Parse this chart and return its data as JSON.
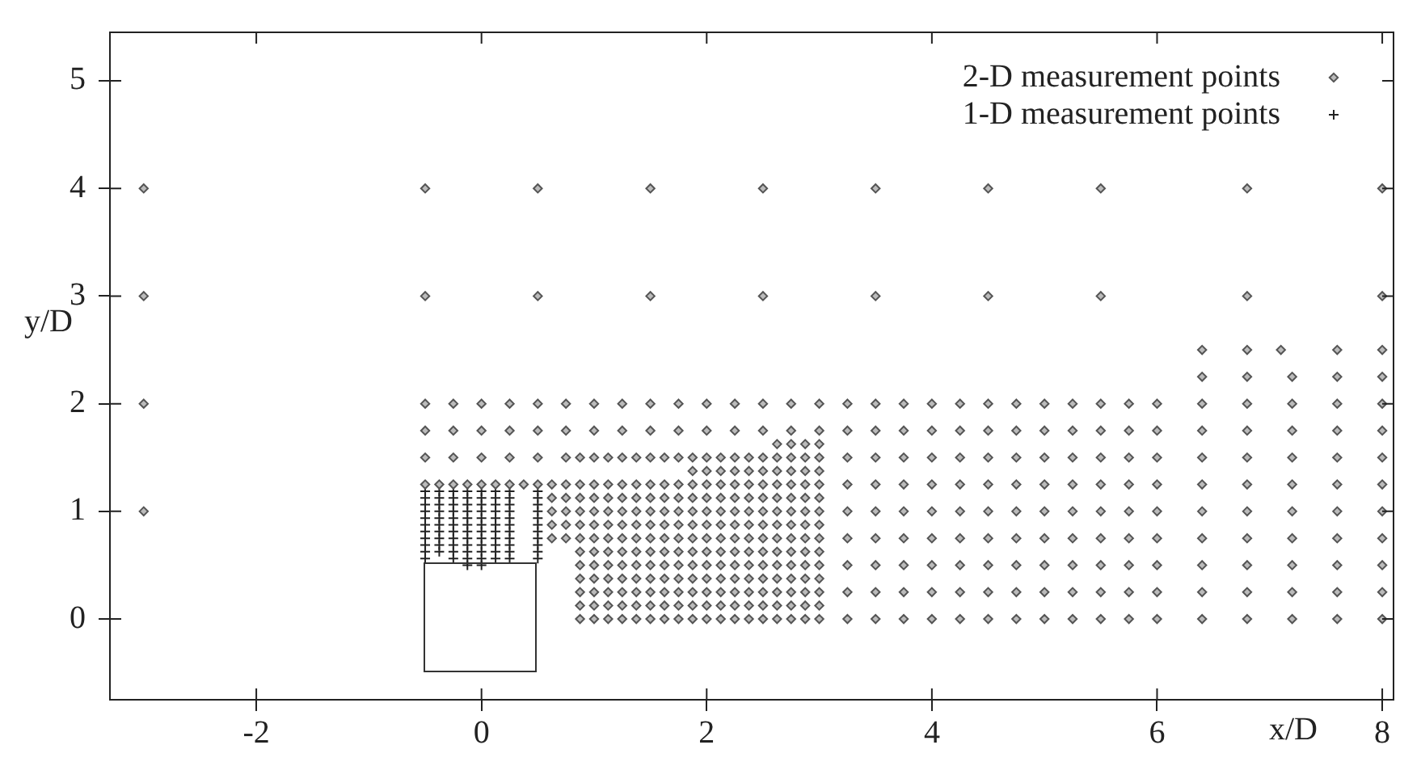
{
  "chart_data": {
    "type": "scatter",
    "xlabel": "x/D",
    "ylabel": "y/D",
    "xlim": [
      -3.3,
      8.1
    ],
    "ylim": [
      -0.75,
      5.45
    ],
    "xticks": [
      -2,
      0,
      2,
      4,
      6,
      8
    ],
    "yticks": [
      0,
      1,
      2,
      3,
      4,
      5
    ],
    "grid": false,
    "legend": "top right",
    "series": [
      {
        "name": "2-D measurement points",
        "color": "#555555",
        "marker": "diamond",
        "x": [
          -3,
          -0.5,
          0.5,
          1.5,
          2.5,
          3.5,
          4.5,
          5.5,
          6.8,
          8,
          -3,
          -0.5,
          0.5,
          1.5,
          2.5,
          3.5,
          4.5,
          5.5,
          6.8,
          8,
          6.4,
          6.8,
          7.1,
          7.6,
          8,
          6.4,
          6.8,
          7.2,
          7.6,
          8,
          -3,
          -0.5,
          -0.25,
          0,
          0.25,
          0.5,
          0.75,
          1,
          1.25,
          1.5,
          1.75,
          2,
          2.25,
          2.5,
          2.75,
          3,
          3.25,
          3.5,
          3.75,
          4,
          4.25,
          4.5,
          4.75,
          5,
          5.25,
          5.5,
          5.75,
          6,
          6.4,
          6.8,
          7.2,
          7.6,
          8,
          -0.5,
          -0.25,
          0,
          0.25,
          0.5,
          0.75,
          1,
          1.25,
          1.5,
          1.75,
          2,
          2.25,
          2.5,
          2.75,
          3,
          3.25,
          3.5,
          3.75,
          4,
          4.25,
          4.5,
          4.75,
          5,
          5.25,
          5.5,
          5.75,
          6,
          6.4,
          6.8,
          7.2,
          7.6,
          8,
          2.625,
          2.75,
          2.875,
          3,
          -0.5,
          -0.25,
          0,
          0.25,
          0.5,
          0.75,
          0.875,
          1,
          1.125,
          1.25,
          1.375,
          1.5,
          1.625,
          1.75,
          1.875,
          2,
          2.125,
          2.25,
          2.375,
          2.5,
          2.625,
          2.75,
          2.875,
          3,
          3.25,
          3.5,
          3.75,
          4,
          4.25,
          4.5,
          4.75,
          5,
          5.25,
          5.5,
          5.75,
          6,
          6.4,
          6.8,
          7.2,
          7.6,
          8,
          1.875,
          2,
          2.125,
          2.25,
          2.375,
          2.5,
          2.625,
          2.75,
          2.875,
          3,
          -0.5,
          -0.375,
          -0.25,
          -0.125,
          0,
          0.125,
          0.25,
          0.375,
          0.5,
          0.625,
          0.75,
          0.875,
          1,
          1.125,
          1.25,
          1.375,
          1.5,
          1.625,
          1.75,
          1.875,
          2,
          2.125,
          2.25,
          2.375,
          2.5,
          2.625,
          2.75,
          2.875,
          3,
          3.25,
          3.5,
          3.75,
          4,
          4.25,
          4.5,
          4.75,
          5,
          5.25,
          5.5,
          5.75,
          6,
          6.4,
          6.8,
          7.2,
          7.6,
          8,
          0.625,
          0.75,
          0.875,
          1,
          1.125,
          1.25,
          1.375,
          1.5,
          1.625,
          1.75,
          1.875,
          2,
          2.125,
          2.25,
          2.375,
          2.5,
          2.625,
          2.75,
          2.875,
          3,
          -3,
          0.625,
          0.75,
          0.875,
          1,
          1.125,
          1.25,
          1.375,
          1.5,
          1.625,
          1.75,
          1.875,
          2,
          2.125,
          2.25,
          2.375,
          2.5,
          2.625,
          2.75,
          2.875,
          3,
          3.25,
          3.5,
          3.75,
          4,
          4.25,
          4.5,
          4.75,
          5,
          5.25,
          5.5,
          5.75,
          6,
          6.4,
          6.8,
          7.2,
          7.6,
          8,
          0.625,
          0.75,
          0.875,
          1,
          1.125,
          1.25,
          1.375,
          1.5,
          1.625,
          1.75,
          1.875,
          2,
          2.125,
          2.25,
          2.375,
          2.5,
          2.625,
          2.75,
          2.875,
          3,
          0.625,
          0.75,
          0.875,
          1,
          1.125,
          1.25,
          1.375,
          1.5,
          1.625,
          1.75,
          1.875,
          2,
          2.125,
          2.25,
          2.375,
          2.5,
          2.625,
          2.75,
          2.875,
          3,
          3.25,
          3.5,
          3.75,
          4,
          4.25,
          4.5,
          4.75,
          5,
          5.25,
          5.5,
          5.75,
          6,
          6.4,
          6.8,
          7.2,
          7.6,
          8,
          0.875,
          1,
          1.125,
          1.25,
          1.375,
          1.5,
          1.625,
          1.75,
          1.875,
          2,
          2.125,
          2.25,
          2.375,
          2.5,
          2.625,
          2.75,
          2.875,
          3,
          0.875,
          1,
          1.125,
          1.25,
          1.375,
          1.5,
          1.625,
          1.75,
          1.875,
          2,
          2.125,
          2.25,
          2.375,
          2.5,
          2.625,
          2.75,
          2.875,
          3,
          3.25,
          3.5,
          3.75,
          4,
          4.25,
          4.5,
          4.75,
          5,
          5.25,
          5.5,
          5.75,
          6,
          6.4,
          6.8,
          7.2,
          7.6,
          8,
          0.875,
          1,
          1.125,
          1.25,
          1.375,
          1.5,
          1.625,
          1.75,
          1.875,
          2,
          2.125,
          2.25,
          2.375,
          2.5,
          2.625,
          2.75,
          2.875,
          3,
          0.875,
          1,
          1.125,
          1.25,
          1.375,
          1.5,
          1.625,
          1.75,
          1.875,
          2,
          2.125,
          2.25,
          2.375,
          2.5,
          2.625,
          2.75,
          2.875,
          3,
          3.25,
          3.5,
          3.75,
          4,
          4.25,
          4.5,
          4.75,
          5,
          5.25,
          5.5,
          5.75,
          6,
          6.4,
          6.8,
          7.2,
          7.6,
          8,
          0.875,
          1,
          1.125,
          1.25,
          1.375,
          1.5,
          1.625,
          1.75,
          1.875,
          2,
          2.125,
          2.25,
          2.375,
          2.5,
          2.625,
          2.75,
          2.875,
          3,
          0.875,
          1,
          1.125,
          1.25,
          1.375,
          1.5,
          1.625,
          1.75,
          1.875,
          2,
          2.125,
          2.25,
          2.375,
          2.5,
          2.625,
          2.75,
          2.875,
          3,
          3.25,
          3.5,
          3.75,
          4,
          4.25,
          4.5,
          4.75,
          5,
          5.25,
          5.5,
          5.75,
          6,
          6.4,
          6.8,
          7.2,
          7.6,
          8
        ],
        "values": [
          4,
          4,
          4,
          4,
          4,
          4,
          4,
          4,
          4,
          4,
          3,
          3,
          3,
          3,
          3,
          3,
          3,
          3,
          3,
          3,
          2.5,
          2.5,
          2.5,
          2.5,
          2.5,
          2.25,
          2.25,
          2.25,
          2.25,
          2.25,
          2,
          2,
          2,
          2,
          2,
          2,
          2,
          2,
          2,
          2,
          2,
          2,
          2,
          2,
          2,
          2,
          2,
          2,
          2,
          2,
          2,
          2,
          2,
          2,
          2,
          2,
          2,
          2,
          2,
          2,
          2,
          2,
          2,
          1.75,
          1.75,
          1.75,
          1.75,
          1.75,
          1.75,
          1.75,
          1.75,
          1.75,
          1.75,
          1.75,
          1.75,
          1.75,
          1.75,
          1.75,
          1.75,
          1.75,
          1.75,
          1.75,
          1.75,
          1.75,
          1.75,
          1.75,
          1.75,
          1.75,
          1.75,
          1.75,
          1.75,
          1.75,
          1.75,
          1.75,
          1.75,
          1.625,
          1.625,
          1.625,
          1.625,
          1.5,
          1.5,
          1.5,
          1.5,
          1.5,
          1.5,
          1.5,
          1.5,
          1.5,
          1.5,
          1.5,
          1.5,
          1.5,
          1.5,
          1.5,
          1.5,
          1.5,
          1.5,
          1.5,
          1.5,
          1.5,
          1.5,
          1.5,
          1.5,
          1.5,
          1.5,
          1.5,
          1.5,
          1.5,
          1.5,
          1.5,
          1.5,
          1.5,
          1.5,
          1.5,
          1.5,
          1.5,
          1.5,
          1.5,
          1.5,
          1.5,
          1.375,
          1.375,
          1.375,
          1.375,
          1.375,
          1.375,
          1.375,
          1.375,
          1.375,
          1.375,
          1.25,
          1.25,
          1.25,
          1.25,
          1.25,
          1.25,
          1.25,
          1.25,
          1.25,
          1.25,
          1.25,
          1.25,
          1.25,
          1.25,
          1.25,
          1.25,
          1.25,
          1.25,
          1.25,
          1.25,
          1.25,
          1.25,
          1.25,
          1.25,
          1.25,
          1.25,
          1.25,
          1.25,
          1.25,
          1.25,
          1.25,
          1.25,
          1.25,
          1.25,
          1.25,
          1.25,
          1.25,
          1.25,
          1.25,
          1.25,
          1.25,
          1.25,
          1.25,
          1.25,
          1.25,
          1.25,
          1.125,
          1.125,
          1.125,
          1.125,
          1.125,
          1.125,
          1.125,
          1.125,
          1.125,
          1.125,
          1.125,
          1.125,
          1.125,
          1.125,
          1.125,
          1.125,
          1.125,
          1.125,
          1.125,
          1.125,
          1,
          1,
          1,
          1,
          1,
          1,
          1,
          1,
          1,
          1,
          1,
          1,
          1,
          1,
          1,
          1,
          1,
          1,
          1,
          1,
          1,
          1,
          1,
          1,
          1,
          1,
          1,
          1,
          1,
          1,
          1,
          1,
          1,
          1,
          1,
          1,
          1,
          1,
          0.875,
          0.875,
          0.875,
          0.875,
          0.875,
          0.875,
          0.875,
          0.875,
          0.875,
          0.875,
          0.875,
          0.875,
          0.875,
          0.875,
          0.875,
          0.875,
          0.875,
          0.875,
          0.875,
          0.875,
          0.75,
          0.75,
          0.75,
          0.75,
          0.75,
          0.75,
          0.75,
          0.75,
          0.75,
          0.75,
          0.75,
          0.75,
          0.75,
          0.75,
          0.75,
          0.75,
          0.75,
          0.75,
          0.75,
          0.75,
          0.75,
          0.75,
          0.75,
          0.75,
          0.75,
          0.75,
          0.75,
          0.75,
          0.75,
          0.75,
          0.75,
          0.75,
          0.75,
          0.75,
          0.75,
          0.75,
          0.75,
          0.625,
          0.625,
          0.625,
          0.625,
          0.625,
          0.625,
          0.625,
          0.625,
          0.625,
          0.625,
          0.625,
          0.625,
          0.625,
          0.625,
          0.625,
          0.625,
          0.625,
          0.625,
          0.5,
          0.5,
          0.5,
          0.5,
          0.5,
          0.5,
          0.5,
          0.5,
          0.5,
          0.5,
          0.5,
          0.5,
          0.5,
          0.5,
          0.5,
          0.5,
          0.5,
          0.5,
          0.5,
          0.5,
          0.5,
          0.5,
          0.5,
          0.5,
          0.5,
          0.5,
          0.5,
          0.5,
          0.5,
          0.5,
          0.5,
          0.5,
          0.5,
          0.5,
          0.5,
          0.375,
          0.375,
          0.375,
          0.375,
          0.375,
          0.375,
          0.375,
          0.375,
          0.375,
          0.375,
          0.375,
          0.375,
          0.375,
          0.375,
          0.375,
          0.375,
          0.375,
          0.375,
          0.25,
          0.25,
          0.25,
          0.25,
          0.25,
          0.25,
          0.25,
          0.25,
          0.25,
          0.25,
          0.25,
          0.25,
          0.25,
          0.25,
          0.25,
          0.25,
          0.25,
          0.25,
          0.25,
          0.25,
          0.25,
          0.25,
          0.25,
          0.25,
          0.25,
          0.25,
          0.25,
          0.25,
          0.25,
          0.25,
          0.25,
          0.25,
          0.25,
          0.25,
          0.25,
          0.125,
          0.125,
          0.125,
          0.125,
          0.125,
          0.125,
          0.125,
          0.125,
          0.125,
          0.125,
          0.125,
          0.125,
          0.125,
          0.125,
          0.125,
          0.125,
          0.125,
          0.125,
          0,
          0,
          0,
          0,
          0,
          0,
          0,
          0,
          0,
          0,
          0,
          0,
          0,
          0,
          0,
          0,
          0,
          0,
          0,
          0,
          0,
          0,
          0,
          0,
          0,
          0,
          0,
          0,
          0,
          0,
          0,
          0,
          0,
          0,
          0
        ]
      },
      {
        "name": "1-D measurement points",
        "color": "#222222",
        "marker": "cross",
        "x": [
          -0.5,
          -0.375,
          -0.25,
          -0.125,
          0,
          0.125,
          0.25,
          0.5,
          -0.5,
          -0.375,
          -0.25,
          -0.125,
          0,
          0.125,
          0.25,
          0.5,
          -0.5,
          -0.375,
          -0.25,
          -0.125,
          0,
          0.125,
          0.25,
          0.5,
          -0.5,
          -0.375,
          -0.25,
          -0.125,
          0,
          0.125,
          0.25,
          0.5,
          -0.5,
          -0.375,
          -0.25,
          -0.125,
          0,
          0.125,
          0.25,
          0.5,
          -0.5,
          -0.375,
          -0.25,
          -0.125,
          0,
          0.125,
          0.25,
          0.5,
          -0.5,
          -0.375,
          -0.25,
          -0.125,
          0,
          0.125,
          0.25,
          0.5,
          -0.5,
          -0.375,
          -0.25,
          -0.125,
          0,
          0.125,
          0.25,
          0.5,
          -0.5,
          -0.375,
          -0.25,
          -0.125,
          0,
          0.125,
          0.25,
          0.5,
          -0.5,
          -0.375,
          -0.25,
          -0.125,
          0,
          0.125,
          0.25,
          0.5,
          -0.5,
          -0.25,
          -0.125,
          0,
          0.125,
          0.25,
          0.5,
          -0.125,
          0
        ],
        "values": [
          1.1875,
          1.1875,
          1.1875,
          1.1875,
          1.1875,
          1.1875,
          1.1875,
          1.1875,
          1.125,
          1.125,
          1.125,
          1.125,
          1.125,
          1.125,
          1.125,
          1.125,
          1.0625,
          1.0625,
          1.0625,
          1.0625,
          1.0625,
          1.0625,
          1.0625,
          1.0625,
          1,
          1,
          1,
          1,
          1,
          1,
          1,
          1,
          0.9375,
          0.9375,
          0.9375,
          0.9375,
          0.9375,
          0.9375,
          0.9375,
          0.9375,
          0.875,
          0.875,
          0.875,
          0.875,
          0.875,
          0.875,
          0.875,
          0.875,
          0.8125,
          0.8125,
          0.8125,
          0.8125,
          0.8125,
          0.8125,
          0.8125,
          0.8125,
          0.75,
          0.75,
          0.75,
          0.75,
          0.75,
          0.75,
          0.75,
          0.75,
          0.6875,
          0.6875,
          0.6875,
          0.6875,
          0.6875,
          0.6875,
          0.6875,
          0.6875,
          0.625,
          0.625,
          0.625,
          0.625,
          0.625,
          0.625,
          0.625,
          0.625,
          0.5625,
          0.5625,
          0.5625,
          0.5625,
          0.5625,
          0.5625,
          0.5625,
          0.5,
          0.5
        ]
      }
    ]
  }
}
